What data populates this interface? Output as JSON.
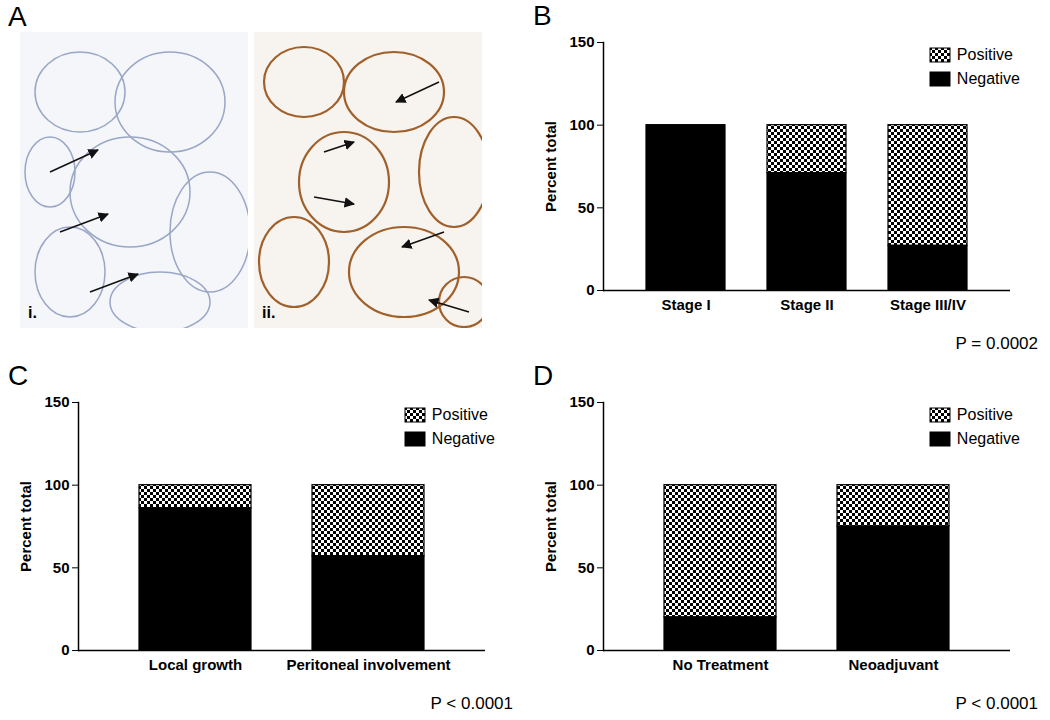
{
  "image_panel": {
    "label": "A",
    "images": [
      {
        "label": "i."
      },
      {
        "label": "ii."
      }
    ]
  },
  "chart_data": [
    {
      "type": "bar",
      "title": "B",
      "stacked": true,
      "categories": [
        "Stage I",
        "Stage II",
        "Stage III/IV"
      ],
      "series": [
        {
          "name": "Positive",
          "color": "#000000",
          "marker": "checkered",
          "values": [
            0,
            29,
            73
          ]
        },
        {
          "name": "Negative",
          "color": "#000000",
          "values": [
            100,
            71,
            27
          ]
        }
      ],
      "ylabel": "Percent total",
      "ylim": [
        0,
        150
      ],
      "yticks": [
        0,
        50,
        100,
        150
      ],
      "legend": "top-right",
      "annotations": [
        "P = 0.0002"
      ]
    },
    {
      "type": "bar",
      "title": "C",
      "stacked": true,
      "categories": [
        "Local growth",
        "Peritoneal involvement"
      ],
      "series": [
        {
          "name": "Positive",
          "color": "#000000",
          "marker": "checkered",
          "values": [
            14,
            43
          ]
        },
        {
          "name": "Negative",
          "color": "#000000",
          "values": [
            86,
            57
          ]
        }
      ],
      "ylabel": "Percent total",
      "ylim": [
        0,
        150
      ],
      "yticks": [
        0,
        50,
        100,
        150
      ],
      "legend": "top-right",
      "annotations": [
        "P < 0.0001"
      ]
    },
    {
      "type": "bar",
      "title": "D",
      "stacked": true,
      "categories": [
        "No Treatment",
        "Neoadjuvant"
      ],
      "series": [
        {
          "name": "Positive",
          "color": "#000000",
          "marker": "checkered",
          "values": [
            80,
            25
          ]
        },
        {
          "name": "Negative",
          "color": "#000000",
          "values": [
            20,
            75
          ]
        }
      ],
      "ylabel": "Percent total",
      "ylim": [
        0,
        150
      ],
      "yticks": [
        0,
        50,
        100,
        150
      ],
      "legend": "top-right",
      "annotations": [
        "P < 0.0001"
      ]
    }
  ]
}
